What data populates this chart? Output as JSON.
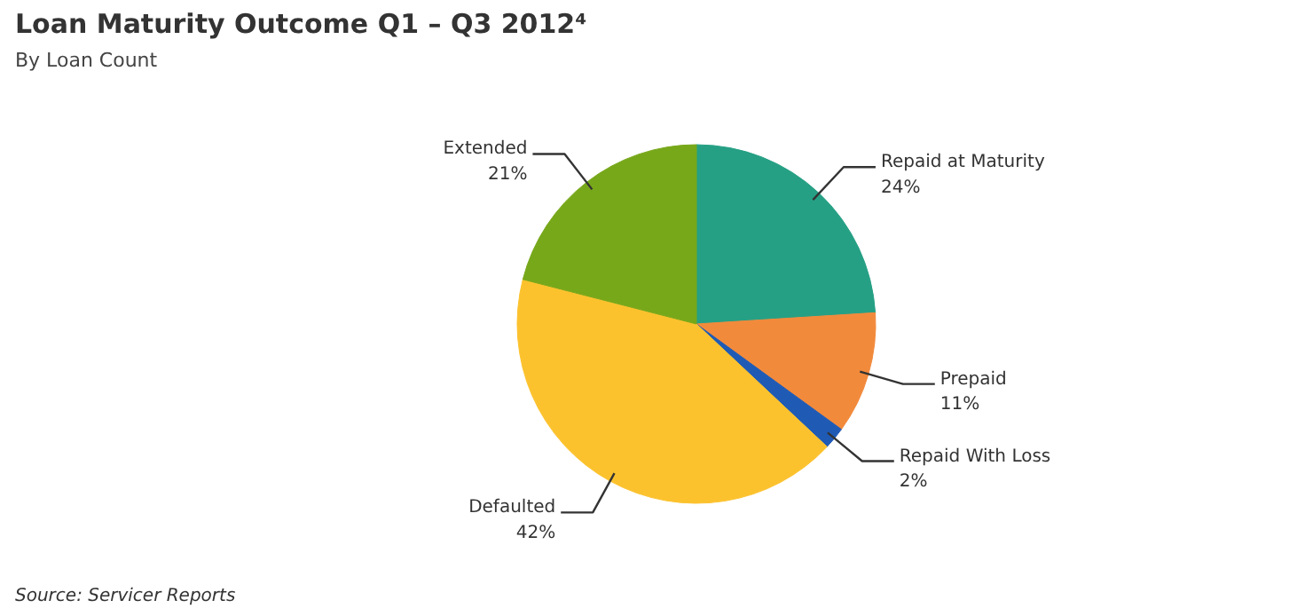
{
  "chart_data": {
    "type": "pie",
    "title": "Loan Maturity Outcome Q1 – Q3 2012⁴",
    "subtitle": "By Loan Count",
    "categories": [
      "Repaid at Maturity",
      "Prepaid",
      "Repaid With Loss",
      "Defaulted",
      "Extended"
    ],
    "values": [
      24,
      11,
      2,
      42,
      21
    ],
    "colors": [
      "#26a085",
      "#f28a3c",
      "#1f5bb5",
      "#fcc22e",
      "#77a81a"
    ],
    "value_labels": [
      "24%",
      "11%",
      "2%",
      "42%",
      "21%"
    ],
    "annotations": [
      "Source: Servicer Reports"
    ]
  }
}
